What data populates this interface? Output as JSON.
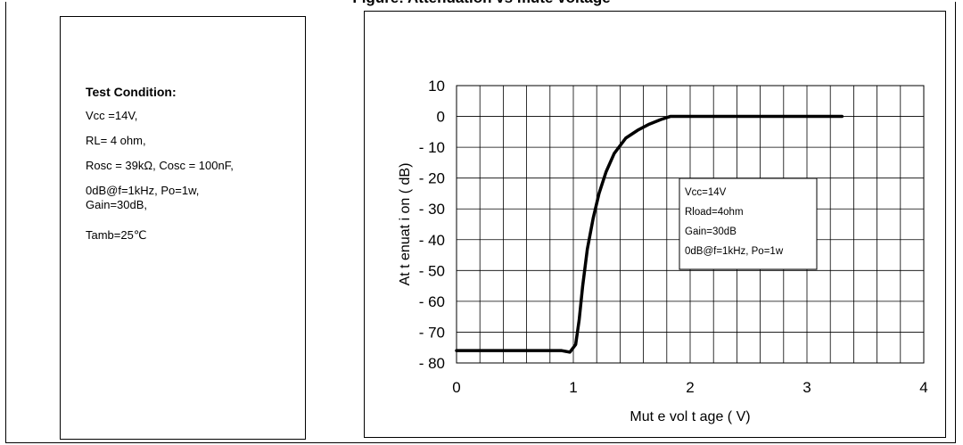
{
  "page_title": "Figure: Attenuation vs mute voltage",
  "conditions": {
    "title": "Test Condition:",
    "lines": [
      "Vcc =14V,",
      "RL= 4 ohm,",
      "Rosc = 39kΩ, Cosc = 100nF,",
      "0dB@f=1kHz, Po=1w,\nGain=30dB,",
      "Tamb=25℃"
    ]
  },
  "chart_data": {
    "type": "line",
    "xlabel": "Mut e vol t age ( V)",
    "ylabel": "At t enuat i on ( dB)",
    "xlim": [
      0,
      4
    ],
    "ylim": [
      -80,
      10
    ],
    "x_ticks": [
      "0",
      "1",
      "2",
      "3",
      "4"
    ],
    "y_ticks": [
      "10",
      "0",
      "- 10",
      "- 20",
      "- 30",
      "- 40",
      "- 50",
      "- 60",
      "- 70",
      "- 80"
    ],
    "grid": true,
    "series": [
      {
        "x": [
          0,
          0.5,
          0.9,
          0.97,
          1.02,
          1.05,
          1.08,
          1.12,
          1.17,
          1.22,
          1.28,
          1.35,
          1.45,
          1.55,
          1.65,
          1.75,
          1.83,
          2.0,
          2.5,
          3.0,
          3.3
        ],
        "y": [
          -76,
          -76,
          -76,
          -76.5,
          -74,
          -66,
          -55,
          -43,
          -33,
          -25,
          -18,
          -12,
          -7,
          -4.5,
          -2.5,
          -1,
          0,
          0,
          0,
          0,
          0
        ]
      }
    ],
    "legend_box": [
      "Vcc=14V",
      "Rload=4ohm",
      "Gain=30dB",
      "0dB@f=1kHz, Po=1w"
    ],
    "line_color": "#000000"
  }
}
